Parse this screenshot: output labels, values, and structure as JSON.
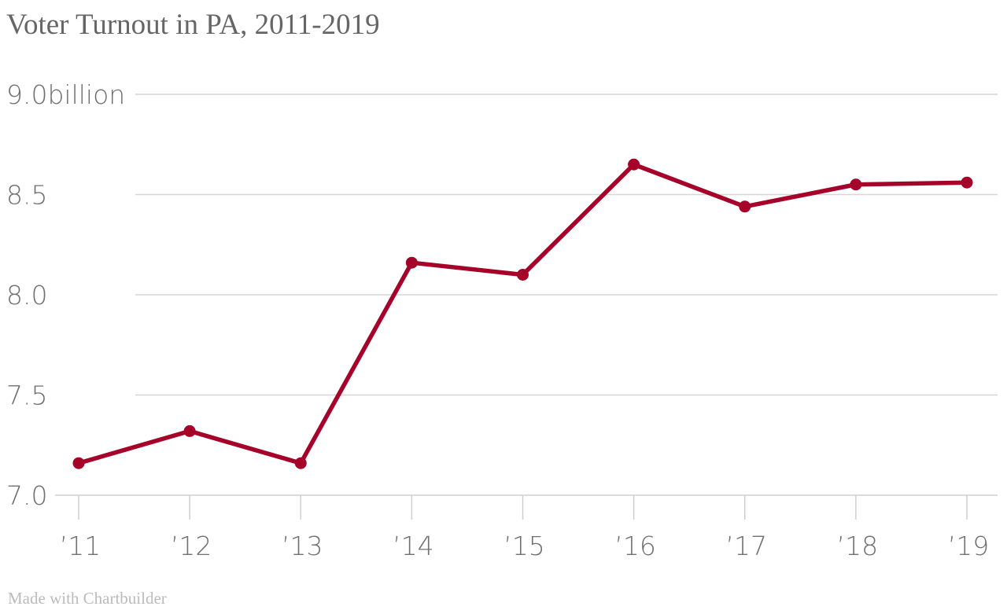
{
  "title": "Voter Turnout in PA, 2011-2019",
  "credit": "Made with Chartbuilder",
  "chart_data": {
    "type": "line",
    "title": "Voter Turnout in PA, 2011-2019",
    "xlabel": "",
    "ylabel": "",
    "x": [
      "’11",
      "’12",
      "’13",
      "’14",
      "’15",
      "’16",
      "’17",
      "’18",
      "’19"
    ],
    "series": [
      {
        "values": [
          7.16,
          7.32,
          7.16,
          8.16,
          8.1,
          8.65,
          8.44,
          8.55,
          8.56
        ]
      }
    ],
    "ylim": [
      7.0,
      9.0
    ],
    "yticks": [
      7.0,
      7.5,
      8.0,
      8.5,
      9.0
    ],
    "ytick_labels": [
      "7.0",
      "7.5",
      "8.0",
      "8.5",
      "9.0billion"
    ],
    "grid": true,
    "colors": {
      "series": "#a6032a",
      "grid": "#d6d6d6",
      "text": "#707070"
    }
  }
}
